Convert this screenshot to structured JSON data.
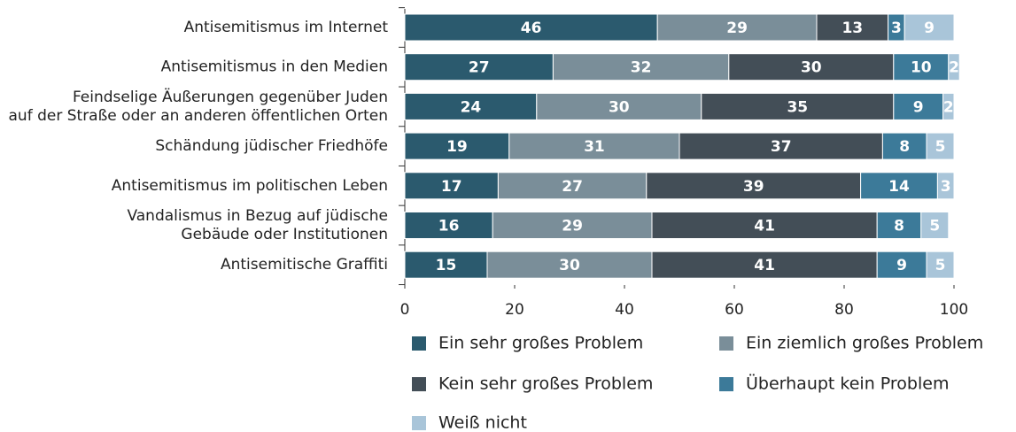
{
  "chart_data": {
    "type": "stacked-bar-horizontal",
    "categories": [
      [
        "Antisemitismus im Internet"
      ],
      [
        "Antisemitismus in den Medien"
      ],
      [
        "Feindselige Äußerungen gegenüber Juden",
        "auf der Straße oder an anderen öffentlichen Orten"
      ],
      [
        "Schändung jüdischer Friedhöfe"
      ],
      [
        "Antisemitismus im politischen Leben"
      ],
      [
        "Vandalismus in Bezug auf jüdische",
        "Gebäude oder Institutionen"
      ],
      [
        "Antisemitische Graffiti"
      ]
    ],
    "series": [
      {
        "name": "Ein sehr großes Problem",
        "color": "#2b5a6e",
        "values": [
          46,
          27,
          24,
          19,
          17,
          16,
          15
        ]
      },
      {
        "name": "Ein ziemlich großes Problem",
        "color": "#7a8e99",
        "values": [
          29,
          32,
          30,
          31,
          27,
          29,
          30
        ]
      },
      {
        "name": "Kein sehr großes Problem",
        "color": "#434e57",
        "values": [
          13,
          30,
          35,
          37,
          39,
          41,
          41
        ]
      },
      {
        "name": "Überhaupt kein Problem",
        "color": "#3c7a99",
        "values": [
          3,
          10,
          9,
          8,
          14,
          8,
          9
        ]
      },
      {
        "name": "Weiß nicht",
        "color": "#a9c5d9",
        "values": [
          9,
          2,
          2,
          5,
          3,
          5,
          5
        ]
      }
    ],
    "xlim": [
      0,
      100
    ],
    "xticks": [
      0,
      20,
      40,
      60,
      80,
      100
    ]
  }
}
